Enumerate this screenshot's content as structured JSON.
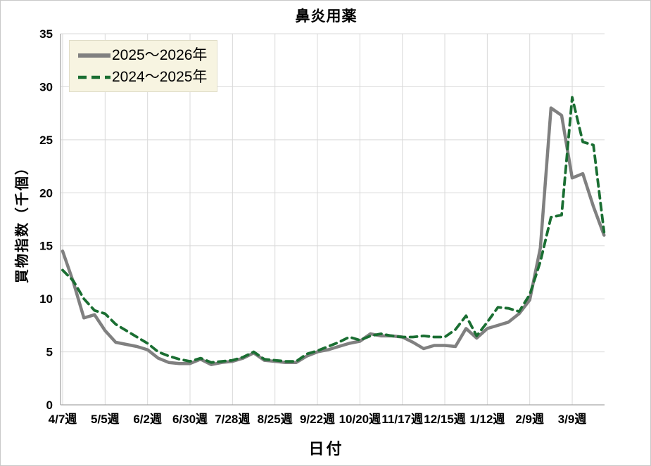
{
  "chart_data": {
    "type": "line",
    "title": "鼻炎用薬",
    "xlabel": "日付",
    "ylabel": "買物指数（千個）",
    "ylim": [
      0,
      35
    ],
    "y_ticks": [
      0,
      5,
      10,
      15,
      20,
      25,
      30,
      35
    ],
    "grid": "both",
    "legend_position": "top-left",
    "n_points": 52,
    "x_tick_positions": [
      0,
      4,
      8,
      12,
      16,
      20,
      24,
      28,
      32,
      36,
      40,
      44,
      48
    ],
    "x_tick_labels": [
      "4/7週",
      "5/5週",
      "6/2週",
      "6/30週",
      "7/28週",
      "8/25週",
      "9/22週",
      "10/20週",
      "11/17週",
      "12/15週",
      "1/12週",
      "2/9週",
      "3/9週"
    ],
    "series": [
      {
        "name": "2025〜2026年",
        "color": "#808080",
        "line_style": "solid",
        "line_width": 4.5,
        "values": [
          14.5,
          11.6,
          8.2,
          8.5,
          7.0,
          5.9,
          5.7,
          5.5,
          5.2,
          4.4,
          4.0,
          3.9,
          3.9,
          4.3,
          3.8,
          4.0,
          4.1,
          4.4,
          4.9,
          4.2,
          4.1,
          4.0,
          4.0,
          4.6,
          5.0,
          5.2,
          5.5,
          5.8,
          6.0,
          6.7,
          6.5,
          6.5,
          6.4,
          5.9,
          5.3,
          5.6,
          5.6,
          5.5,
          7.2,
          6.3,
          7.2,
          7.5,
          7.8,
          8.6,
          9.9,
          14.8,
          28.0,
          27.3,
          21.4,
          21.8,
          18.7,
          16.0
        ]
      },
      {
        "name": "2024〜2025年",
        "color": "#1a6e32",
        "line_style": "dashed",
        "line_width": 3.8,
        "values": [
          12.7,
          11.7,
          10.0,
          8.9,
          8.6,
          7.6,
          7.0,
          6.4,
          5.8,
          5.0,
          4.6,
          4.3,
          4.1,
          4.4,
          4.0,
          4.1,
          4.2,
          4.5,
          5.0,
          4.3,
          4.2,
          4.1,
          4.1,
          4.8,
          5.1,
          5.5,
          5.9,
          6.4,
          6.1,
          6.5,
          6.7,
          6.5,
          6.4,
          6.4,
          6.5,
          6.4,
          6.4,
          7.1,
          8.4,
          6.5,
          7.8,
          9.2,
          9.1,
          8.8,
          10.4,
          13.5,
          17.7,
          17.9,
          29.0,
          24.8,
          24.5,
          16.3
        ]
      }
    ],
    "colors": {
      "gridline": "#d9d9d9",
      "axis_line": "#a6a6a6",
      "legend_background": "#f7f4e1",
      "text": "#000000"
    }
  }
}
